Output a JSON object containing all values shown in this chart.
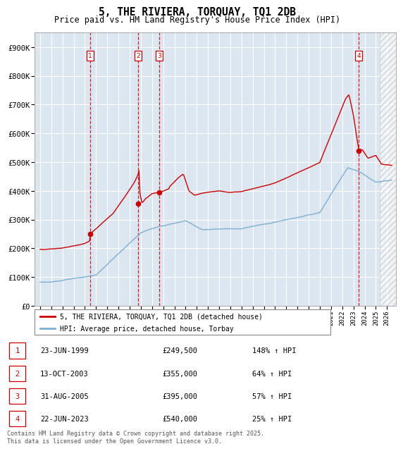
{
  "title": "5, THE RIVIERA, TORQUAY, TQ1 2DB",
  "subtitle": "Price paid vs. HM Land Registry's House Price Index (HPI)",
  "red_label": "5, THE RIVIERA, TORQUAY, TQ1 2DB (detached house)",
  "blue_label": "HPI: Average price, detached house, Torbay",
  "transactions": [
    {
      "num": 1,
      "date": "23-JUN-1999",
      "price": 249500,
      "pct": "148%",
      "date_x": 1999.47
    },
    {
      "num": 2,
      "date": "13-OCT-2003",
      "price": 355000,
      "pct": "64%",
      "date_x": 2003.78
    },
    {
      "num": 3,
      "date": "31-AUG-2005",
      "price": 395000,
      "pct": "57%",
      "date_x": 2005.66
    },
    {
      "num": 4,
      "date": "22-JUN-2023",
      "price": 540000,
      "pct": "25%",
      "date_x": 2023.47
    }
  ],
  "ylim": [
    0,
    950000
  ],
  "xlim_start": 1994.5,
  "xlim_end": 2026.8,
  "background_color": "#dce6f1",
  "grid_color": "#ffffff",
  "red_line_color": "#cc0000",
  "blue_line_color": "#7ab0d4",
  "footer_text": "Contains HM Land Registry data © Crown copyright and database right 2025.\nThis data is licensed under the Open Government Licence v3.0.",
  "yticks": [
    0,
    100000,
    200000,
    300000,
    400000,
    500000,
    600000,
    700000,
    800000,
    900000
  ],
  "ytick_labels": [
    "£0",
    "£100K",
    "£200K",
    "£300K",
    "£400K",
    "£500K",
    "£600K",
    "£700K",
    "£800K",
    "£900K"
  ]
}
